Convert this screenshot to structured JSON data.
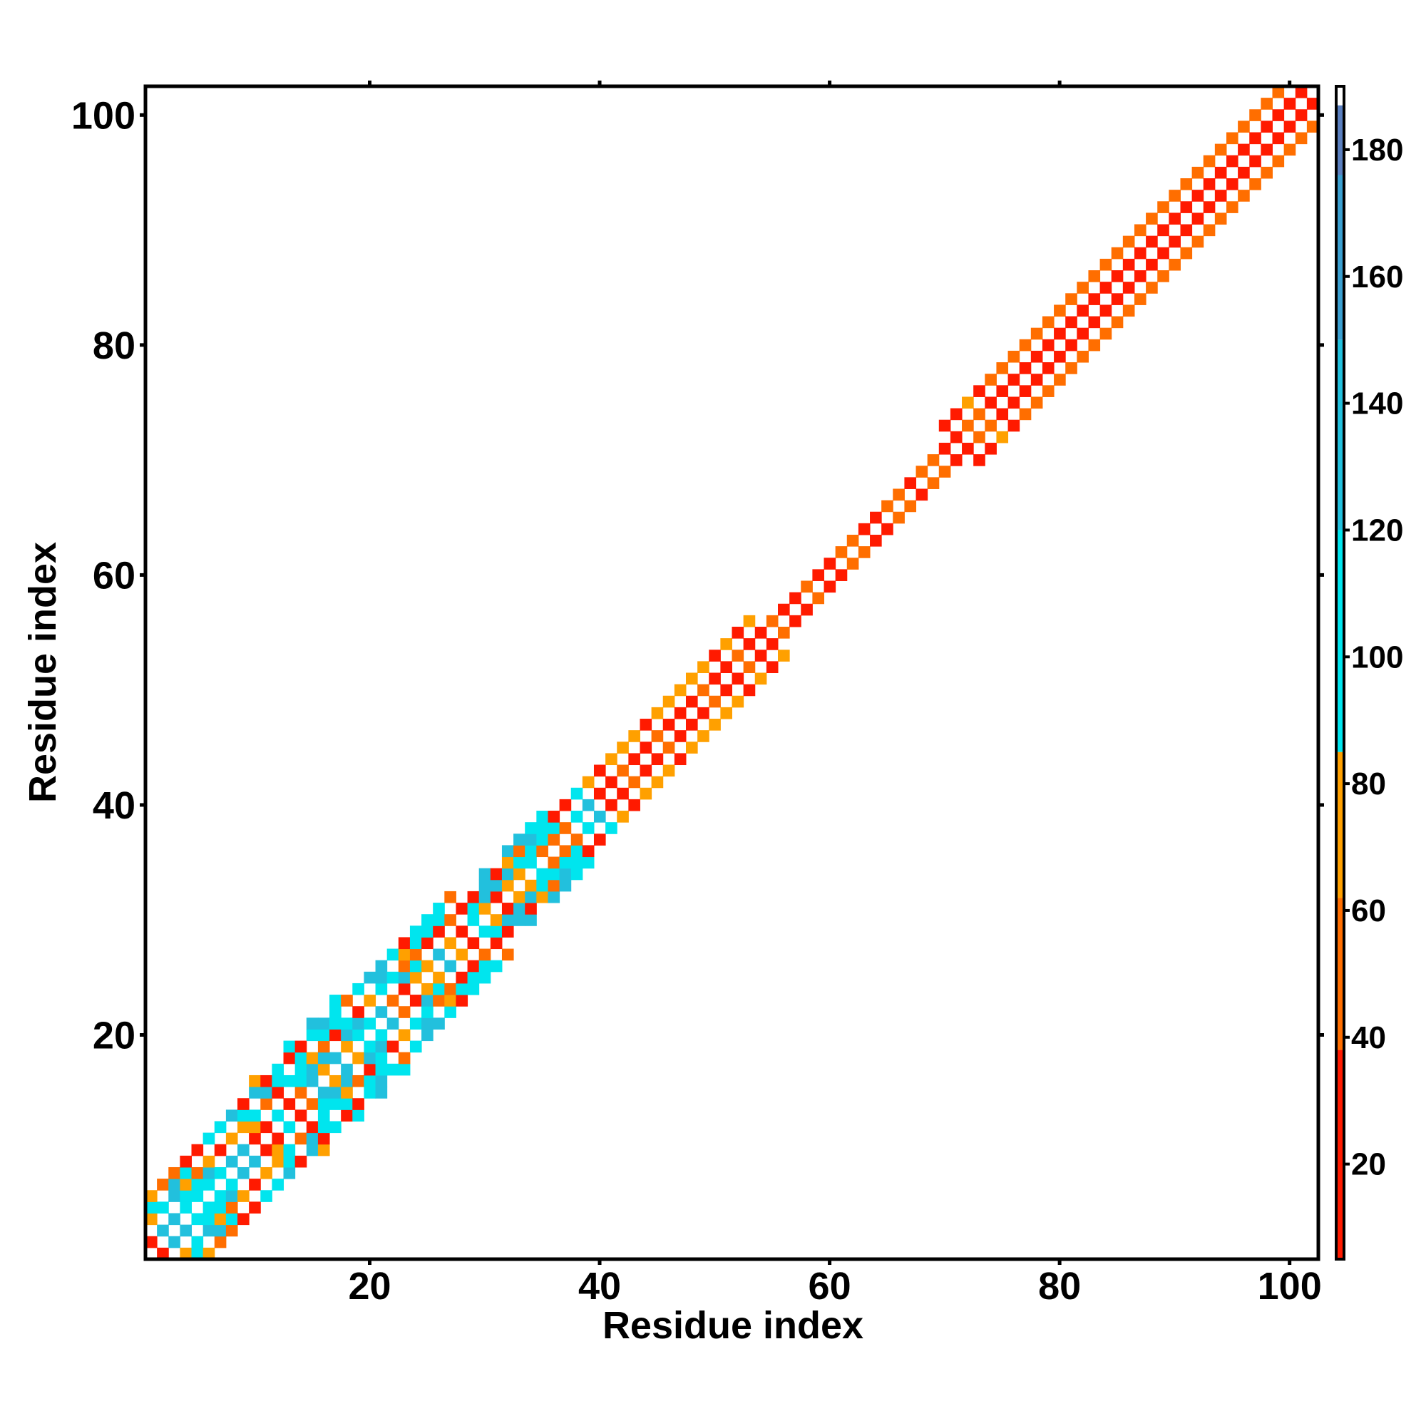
{
  "chart_data": {
    "type": "heatmap",
    "title": "",
    "xlabel": "Residue index",
    "ylabel": "Residue index",
    "xlim": [
      1,
      102
    ],
    "ylim": [
      1,
      102
    ],
    "x_ticks": [
      20,
      40,
      60,
      80,
      100
    ],
    "y_ticks": [
      20,
      40,
      60,
      80,
      100
    ],
    "grid": false,
    "colorbar": {
      "range": [
        5,
        190
      ],
      "ticks": [
        20,
        40,
        60,
        80,
        100,
        120,
        140,
        160,
        180
      ],
      "bands": [
        {
          "from": 5,
          "to": 38,
          "color": "#ff1a00"
        },
        {
          "from": 38,
          "to": 62,
          "color": "#ff6e00"
        },
        {
          "from": 62,
          "to": 85,
          "color": "#ffa000"
        },
        {
          "from": 85,
          "to": 120,
          "color": "#00e5ee"
        },
        {
          "from": 120,
          "to": 150,
          "color": "#22c0dd"
        },
        {
          "from": 150,
          "to": 176,
          "color": "#3a9fd0"
        },
        {
          "from": 176,
          "to": 187,
          "color": "#5a7fbf"
        },
        {
          "from": 187,
          "to": 190,
          "color": "#ffffff"
        }
      ]
    },
    "band_profile": [
      {
        "residue": 1,
        "half_width": 5
      },
      {
        "residue": 10,
        "half_width": 5
      },
      {
        "residue": 15,
        "half_width": 6
      },
      {
        "residue": 25,
        "half_width": 5
      },
      {
        "residue": 35,
        "half_width": 4
      },
      {
        "residue": 40,
        "half_width": 3
      },
      {
        "residue": 50,
        "half_width": 3
      },
      {
        "residue": 60,
        "half_width": 2
      },
      {
        "residue": 70,
        "half_width": 2
      },
      {
        "residue": 75,
        "half_width": 4
      },
      {
        "residue": 100,
        "half_width": 4
      }
    ],
    "notes": "Symmetric residue-residue map; colored cells concentrated along the diagonal band"
  },
  "colors": {
    "axis": "#000000",
    "background": "#ffffff"
  }
}
